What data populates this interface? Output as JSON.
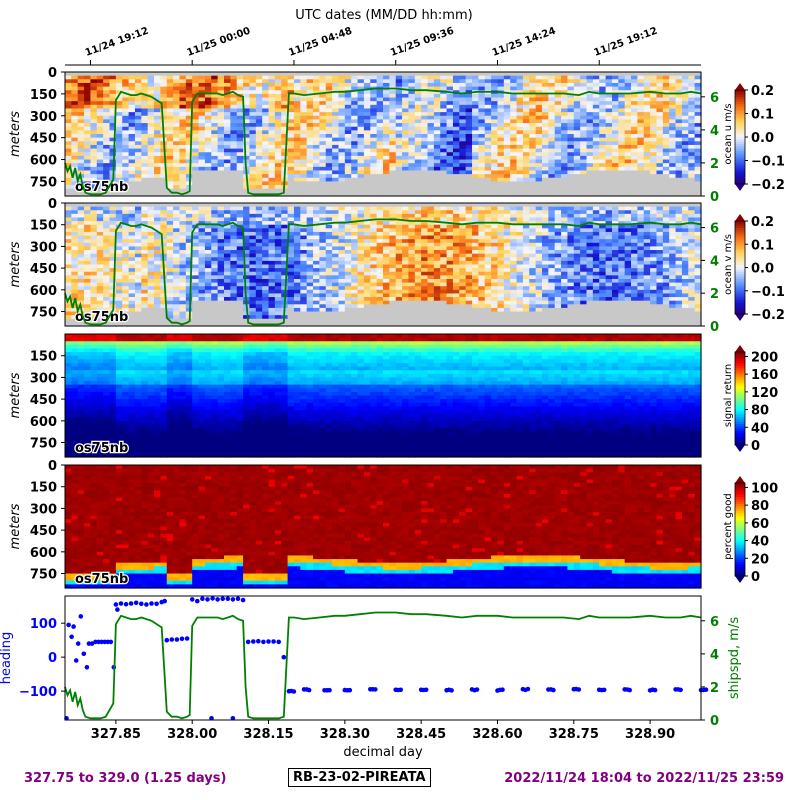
{
  "top_axis": {
    "label": "UTC dates (MM/DD hh:mm)",
    "ticks": [
      {
        "day": 327.8,
        "label": "11/24 19:12"
      },
      {
        "day": 328.0,
        "label": "11/25 00:00"
      },
      {
        "day": 328.2,
        "label": "11/25 04:48"
      },
      {
        "day": 328.4,
        "label": "11/25 09:36"
      },
      {
        "day": 328.6,
        "label": "11/25 14:24"
      },
      {
        "day": 328.8,
        "label": "11/25 19:12"
      }
    ]
  },
  "chart_data": [
    {
      "type": "heatmap",
      "panel": "ocean-u",
      "xlim": [
        327.75,
        329.0
      ],
      "ylabel": "meters",
      "ylim": [
        850,
        0
      ],
      "yticks": [
        0,
        150,
        300,
        450,
        600,
        750
      ],
      "annotation": "os75nb",
      "colorbar": {
        "label": "ocean u m/s",
        "ticks": [
          0.2,
          0.1,
          0.0,
          -0.1,
          -0.2
        ],
        "range": [
          -0.2,
          0.2
        ],
        "colormap": "bwr-jet"
      },
      "overlay_axis": {
        "ticks": [
          0,
          2,
          4,
          6
        ],
        "range": [
          0,
          7.5
        ],
        "color": "#008000"
      },
      "overlay": "shipspd"
    },
    {
      "type": "heatmap",
      "panel": "ocean-v",
      "xlim": [
        327.75,
        329.0
      ],
      "ylabel": "meters",
      "ylim": [
        850,
        0
      ],
      "yticks": [
        0,
        150,
        300,
        450,
        600,
        750
      ],
      "annotation": "os75nb",
      "colorbar": {
        "label": "ocean v m/s",
        "ticks": [
          0.2,
          0.1,
          0.0,
          -0.1,
          -0.2
        ],
        "range": [
          -0.2,
          0.2
        ],
        "colormap": "bwr-jet"
      },
      "overlay_axis": {
        "ticks": [
          0,
          2,
          4,
          6
        ],
        "range": [
          0,
          7.5
        ],
        "color": "#008000"
      },
      "overlay": "shipspd"
    },
    {
      "type": "heatmap",
      "panel": "signal-return",
      "xlim": [
        327.75,
        329.0
      ],
      "ylabel": "meters",
      "ylim": [
        850,
        0
      ],
      "yticks": [
        150,
        300,
        450,
        600,
        750
      ],
      "annotation": "os75nb",
      "colorbar": {
        "label": "signal return",
        "ticks": [
          200,
          160,
          120,
          80,
          40,
          0
        ],
        "range": [
          0,
          210
        ],
        "colormap": "jet"
      }
    },
    {
      "type": "heatmap",
      "panel": "percent-good",
      "xlim": [
        327.75,
        329.0
      ],
      "ylabel": "meters",
      "ylim": [
        850,
        0
      ],
      "yticks": [
        0,
        150,
        300,
        450,
        600,
        750
      ],
      "annotation": "os75nb",
      "colorbar": {
        "label": "percent good",
        "ticks": [
          100,
          80,
          60,
          40,
          20,
          0
        ],
        "range": [
          0,
          105
        ],
        "colormap": "jet"
      }
    },
    {
      "type": "scatter",
      "panel": "heading-shipspd",
      "xlabel": "decimal day",
      "xlim": [
        327.75,
        329.0
      ],
      "xticks": [
        327.85,
        328.0,
        328.15,
        328.3,
        328.45,
        328.6,
        328.75,
        328.9
      ],
      "xticklabels": [
        "327.85",
        "328.00",
        "328.15",
        "328.30",
        "328.45",
        "328.60",
        "328.75",
        "328.90"
      ],
      "ylabel": "heading",
      "ylim": [
        -185,
        180
      ],
      "yticks": [
        100,
        0,
        -100
      ],
      "y2label": "shipspd, m/s",
      "y2lim": [
        0,
        7.5
      ],
      "y2ticks": [
        6,
        4,
        2,
        0
      ],
      "heading_color": "#0000ff",
      "shipspd_color": "#008000",
      "heading_points": [
        [
          327.753,
          -180
        ],
        [
          327.757,
          95
        ],
        [
          327.763,
          60
        ],
        [
          327.767,
          90
        ],
        [
          327.772,
          -10
        ],
        [
          327.776,
          40
        ],
        [
          327.781,
          120
        ],
        [
          327.787,
          10
        ],
        [
          327.793,
          -30
        ],
        [
          327.797,
          40
        ],
        [
          327.803,
          40
        ],
        [
          327.81,
          45
        ],
        [
          327.816,
          45
        ],
        [
          327.822,
          45
        ],
        [
          327.828,
          45
        ],
        [
          327.834,
          45
        ],
        [
          327.84,
          45
        ],
        [
          327.846,
          -30
        ],
        [
          327.85,
          155
        ],
        [
          327.86,
          158
        ],
        [
          327.87,
          156
        ],
        [
          327.88,
          158
        ],
        [
          327.89,
          160
        ],
        [
          327.9,
          157
        ],
        [
          327.91,
          155
        ],
        [
          327.92,
          158
        ],
        [
          327.93,
          157
        ],
        [
          327.94,
          162
        ],
        [
          327.95,
          50
        ],
        [
          327.96,
          52
        ],
        [
          327.97,
          52
        ],
        [
          327.98,
          54
        ],
        [
          327.99,
          55
        ],
        [
          328.0,
          170
        ],
        [
          328.01,
          165
        ],
        [
          328.02,
          172
        ],
        [
          328.03,
          170
        ],
        [
          328.04,
          173
        ],
        [
          328.05,
          170
        ],
        [
          328.06,
          172
        ],
        [
          328.07,
          172
        ],
        [
          328.08,
          170
        ],
        [
          328.09,
          172
        ],
        [
          328.1,
          168
        ],
        [
          328.11,
          45
        ],
        [
          328.12,
          46
        ],
        [
          328.13,
          47
        ],
        [
          328.14,
          45
        ],
        [
          328.15,
          46
        ],
        [
          328.16,
          46
        ],
        [
          328.17,
          45
        ],
        [
          328.18,
          0
        ],
        [
          328.19,
          -100
        ],
        [
          328.22,
          -96
        ],
        [
          328.26,
          -97
        ],
        [
          328.3,
          -97
        ],
        [
          328.35,
          -96
        ],
        [
          328.4,
          -97
        ],
        [
          328.45,
          -96
        ],
        [
          328.5,
          -97
        ],
        [
          328.55,
          -96
        ],
        [
          328.6,
          -97
        ],
        [
          328.65,
          -95
        ],
        [
          328.7,
          -96
        ],
        [
          328.75,
          -94
        ],
        [
          328.8,
          -96
        ],
        [
          328.85,
          -96
        ],
        [
          328.9,
          -97
        ],
        [
          328.95,
          -96
        ],
        [
          329.0,
          -96
        ]
      ],
      "heading_outliers": [
        [
          327.853,
          140
        ],
        [
          327.946,
          165
        ],
        [
          328.038,
          -180
        ],
        [
          328.08,
          -180
        ]
      ],
      "shipspd_points": [
        [
          327.75,
          2.0
        ],
        [
          327.755,
          1.5
        ],
        [
          327.76,
          1.8
        ],
        [
          327.765,
          1.1
        ],
        [
          327.77,
          1.7
        ],
        [
          327.775,
          0.9
        ],
        [
          327.78,
          1.3
        ],
        [
          327.785,
          0.6
        ],
        [
          327.79,
          0.2
        ],
        [
          327.8,
          0.1
        ],
        [
          327.81,
          0.1
        ],
        [
          327.82,
          0.1
        ],
        [
          327.83,
          0.2
        ],
        [
          327.845,
          1.0
        ],
        [
          327.85,
          5.8
        ],
        [
          327.86,
          6.3
        ],
        [
          327.87,
          6.2
        ],
        [
          327.88,
          6.1
        ],
        [
          327.89,
          6.1
        ],
        [
          327.9,
          6.2
        ],
        [
          327.91,
          6.1
        ],
        [
          327.92,
          6.0
        ],
        [
          327.93,
          5.8
        ],
        [
          327.94,
          5.6
        ],
        [
          327.95,
          0.5
        ],
        [
          327.96,
          0.2
        ],
        [
          327.97,
          0.2
        ],
        [
          327.98,
          0.1
        ],
        [
          327.99,
          0.2
        ],
        [
          327.995,
          0.3
        ],
        [
          328.0,
          5.7
        ],
        [
          328.01,
          6.2
        ],
        [
          328.02,
          6.2
        ],
        [
          328.03,
          6.2
        ],
        [
          328.04,
          6.2
        ],
        [
          328.05,
          6.2
        ],
        [
          328.06,
          6.1
        ],
        [
          328.07,
          6.2
        ],
        [
          328.08,
          6.3
        ],
        [
          328.09,
          6.1
        ],
        [
          328.1,
          6.0
        ],
        [
          328.105,
          2.0
        ],
        [
          328.11,
          0.2
        ],
        [
          328.12,
          0.1
        ],
        [
          328.13,
          0.1
        ],
        [
          328.14,
          0.1
        ],
        [
          328.15,
          0.1
        ],
        [
          328.16,
          0.1
        ],
        [
          328.17,
          0.1
        ],
        [
          328.18,
          0.2
        ],
        [
          328.19,
          6.2
        ],
        [
          328.2,
          6.2
        ],
        [
          328.22,
          6.1
        ],
        [
          328.25,
          6.2
        ],
        [
          328.28,
          6.3
        ],
        [
          328.3,
          6.3
        ],
        [
          328.33,
          6.4
        ],
        [
          328.36,
          6.5
        ],
        [
          328.4,
          6.5
        ],
        [
          328.43,
          6.4
        ],
        [
          328.46,
          6.4
        ],
        [
          328.5,
          6.3
        ],
        [
          328.53,
          6.2
        ],
        [
          328.56,
          6.3
        ],
        [
          328.6,
          6.3
        ],
        [
          328.63,
          6.2
        ],
        [
          328.66,
          6.2
        ],
        [
          328.7,
          6.2
        ],
        [
          328.73,
          6.2
        ],
        [
          328.76,
          6.1
        ],
        [
          328.78,
          6.3
        ],
        [
          328.8,
          6.2
        ],
        [
          328.83,
          6.2
        ],
        [
          328.86,
          6.2
        ],
        [
          328.9,
          6.3
        ],
        [
          328.93,
          6.2
        ],
        [
          328.96,
          6.2
        ],
        [
          328.98,
          6.3
        ],
        [
          329.0,
          6.2
        ]
      ]
    }
  ],
  "footer": {
    "left": "327.75 to 329.0 (1.25 days)",
    "center": "RB-23-02-PIREATA",
    "right": "2022/11/24 18:04 to 2022/11/25 23:59"
  }
}
